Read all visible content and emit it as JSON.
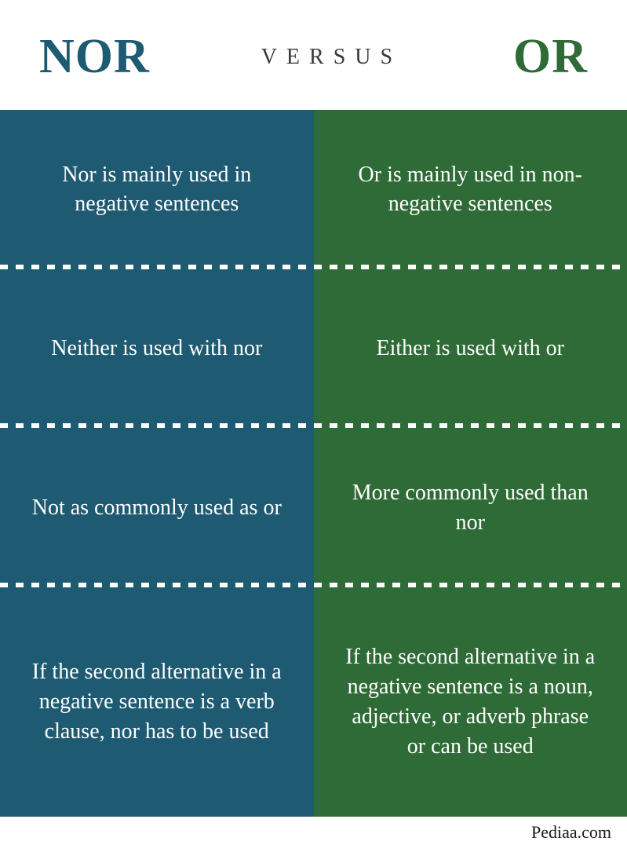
{
  "colors": {
    "left_header": "#1e5a72",
    "right_header": "#2f6b36",
    "center_header": "#3a3a3a",
    "left_bg": "#1e5a72",
    "right_bg": "#2f6b36",
    "cell_text": "#ffffff",
    "background": "#ffffff"
  },
  "header": {
    "left": "NOR",
    "center": "VERSUS",
    "right": "OR"
  },
  "left_column": {
    "rows": [
      "Nor is mainly used in negative sentences",
      "Neither is used with nor",
      "Not as commonly used as or",
      "If the second alternative in  a negative sentence is a verb clause, nor has to be used"
    ]
  },
  "right_column": {
    "rows": [
      "Or is mainly used in non-negative sentences",
      "Either is used with or",
      "More commonly used than nor",
      "If the second alternative in  a negative sentence is a  noun, adjective, or adverb phrase or can be used"
    ]
  },
  "source": "Pediaa.com",
  "layout": {
    "row_heights": [
      1,
      1,
      1,
      1.55
    ],
    "font_size_cell": 28,
    "font_size_header_side": 62,
    "font_size_header_center": 28
  }
}
